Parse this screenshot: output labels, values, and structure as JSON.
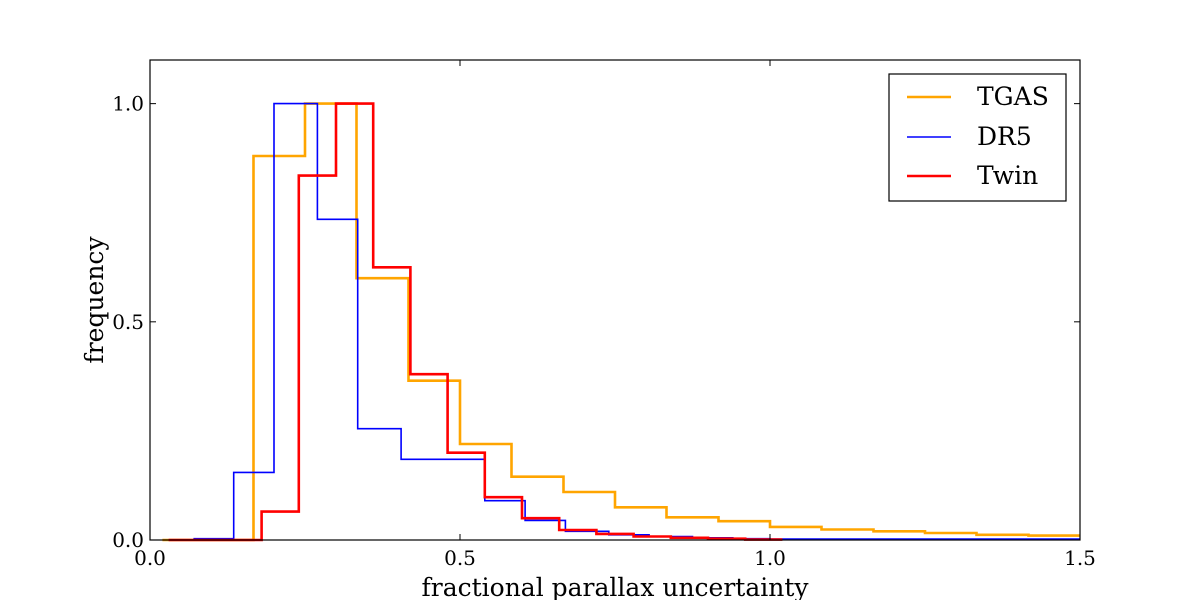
{
  "chart_data": {
    "type": "histogram-step",
    "title": "",
    "xlabel": "fractional parallax uncertainty",
    "ylabel": "frequency",
    "xlim": [
      0.0,
      1.5
    ],
    "ylim": [
      0.0,
      1.1
    ],
    "x_ticks": [
      0.0,
      0.5,
      1.0,
      1.5
    ],
    "x_tick_labels": [
      "0.0",
      "0.5",
      "1.0",
      "1.5"
    ],
    "y_ticks": [
      0.0,
      0.5,
      1.0
    ],
    "y_tick_labels": [
      "0.0",
      "0.5",
      "1.0"
    ],
    "legend_position": "top-right",
    "series": [
      {
        "name": "TGAS",
        "color": "#FFA500",
        "stroke": "thick",
        "edges": [
          0.02,
          0.08,
          0.167,
          0.25,
          0.333,
          0.417,
          0.5,
          0.583,
          0.667,
          0.75,
          0.833,
          0.917,
          1.0,
          1.083,
          1.167,
          1.25,
          1.333,
          1.417,
          1.5
        ],
        "values": [
          0.0,
          0.0,
          0.88,
          1.0,
          0.6,
          0.365,
          0.22,
          0.145,
          0.11,
          0.075,
          0.052,
          0.043,
          0.03,
          0.024,
          0.02,
          0.016,
          0.012,
          0.01
        ]
      },
      {
        "name": "DR5",
        "color": "#0000FF",
        "stroke": "thin",
        "edges": [
          0.07,
          0.135,
          0.2,
          0.27,
          0.335,
          0.405,
          0.47,
          0.54,
          0.605,
          0.67,
          0.74,
          0.805,
          0.875,
          0.94,
          1.0,
          1.5
        ],
        "values": [
          0.003,
          0.155,
          1.0,
          0.735,
          0.255,
          0.185,
          0.185,
          0.09,
          0.045,
          0.02,
          0.012,
          0.008,
          0.005,
          0.003,
          0.002
        ]
      },
      {
        "name": "Twin",
        "color": "#FF0000",
        "stroke": "thick",
        "edges": [
          0.03,
          0.11,
          0.18,
          0.24,
          0.3,
          0.36,
          0.42,
          0.48,
          0.54,
          0.6,
          0.66,
          0.72,
          0.78,
          0.84,
          0.9,
          0.96,
          1.02
        ],
        "values": [
          0.0,
          0.0,
          0.065,
          0.835,
          1.0,
          0.625,
          0.38,
          0.2,
          0.098,
          0.05,
          0.023,
          0.014,
          0.008,
          0.005,
          0.003,
          0.001
        ]
      }
    ]
  }
}
